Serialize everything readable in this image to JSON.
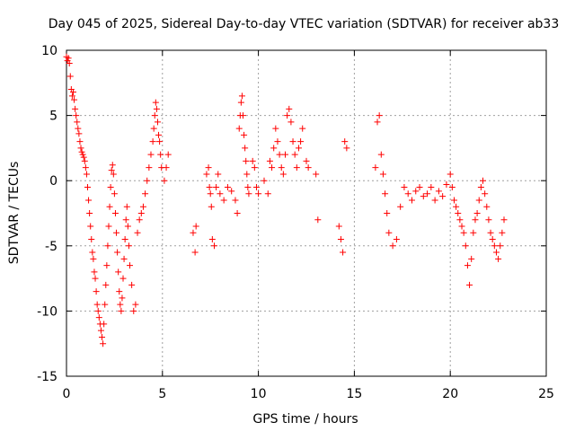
{
  "chart_data": {
    "type": "scatter",
    "title": "Day 045 of 2025, Sidereal Day-to-day VTEC variation (SDTVAR) for receiver ab33",
    "xlabel": "GPS time / hours",
    "ylabel": "SDTVAR / TECUs",
    "xlim": [
      0,
      25
    ],
    "ylim": [
      -15,
      10
    ],
    "xticks": [
      "0",
      "5",
      "10",
      "15",
      "20",
      "25"
    ],
    "yticks": [
      "10",
      "5",
      "0",
      "-5",
      "-10",
      "-15"
    ],
    "grid": true,
    "marker": "+",
    "color": "#ff0000",
    "series": [
      {
        "name": "SDTVAR",
        "x": [
          0.0,
          0.05,
          0.1,
          0.15,
          0.2,
          0.25,
          0.3,
          0.35,
          0.4,
          0.45,
          0.5,
          0.55,
          0.6,
          0.65,
          0.7,
          0.75,
          0.8,
          0.85,
          0.9,
          0.95,
          1.0,
          1.05,
          1.1,
          1.15,
          1.2,
          1.25,
          1.3,
          1.35,
          1.4,
          1.45,
          1.5,
          1.55,
          1.6,
          1.65,
          1.7,
          1.75,
          1.8,
          1.85,
          1.9,
          1.95,
          2.0,
          2.05,
          2.1,
          2.15,
          2.2,
          2.25,
          2.3,
          2.35,
          2.4,
          2.45,
          2.5,
          2.55,
          2.6,
          2.65,
          2.7,
          2.75,
          2.8,
          2.85,
          2.9,
          2.95,
          3.0,
          3.05,
          3.1,
          3.15,
          3.2,
          3.25,
          3.3,
          3.4,
          3.5,
          3.6,
          3.7,
          3.8,
          3.9,
          4.0,
          4.1,
          4.2,
          4.3,
          4.4,
          4.5,
          4.55,
          4.6,
          4.65,
          4.7,
          4.75,
          4.8,
          4.85,
          4.9,
          4.95,
          5.1,
          5.2,
          5.3,
          6.6,
          6.7,
          6.75,
          7.3,
          7.4,
          7.45,
          7.5,
          7.55,
          7.6,
          7.7,
          7.8,
          7.9,
          8.0,
          8.2,
          8.4,
          8.6,
          8.8,
          8.9,
          9.0,
          9.05,
          9.1,
          9.15,
          9.2,
          9.25,
          9.3,
          9.35,
          9.4,
          9.45,
          9.5,
          9.7,
          9.8,
          9.9,
          10.0,
          10.3,
          10.5,
          10.6,
          10.7,
          10.8,
          10.9,
          11.0,
          11.1,
          11.2,
          11.3,
          11.4,
          11.5,
          11.6,
          11.7,
          11.8,
          11.9,
          12.0,
          12.1,
          12.2,
          12.3,
          12.5,
          12.6,
          13.0,
          13.1,
          14.2,
          14.3,
          14.4,
          14.5,
          14.6,
          16.1,
          16.2,
          16.3,
          16.4,
          16.5,
          16.6,
          16.7,
          16.8,
          17.0,
          17.2,
          17.4,
          17.6,
          17.8,
          18.0,
          18.2,
          18.4,
          18.6,
          18.8,
          19.0,
          19.2,
          19.4,
          19.6,
          19.8,
          20.0,
          20.1,
          20.2,
          20.3,
          20.4,
          20.5,
          20.6,
          20.7,
          20.8,
          20.9,
          21.0,
          21.1,
          21.2,
          21.3,
          21.4,
          21.5,
          21.6,
          21.7,
          21.8,
          21.9,
          22.0,
          22.1,
          22.2,
          22.3,
          22.4,
          22.5,
          22.6,
          22.7,
          22.8
        ],
        "y": [
          9.5,
          9.2,
          9.4,
          9.0,
          8.0,
          7.0,
          6.5,
          6.8,
          6.2,
          5.5,
          5.0,
          4.5,
          4.0,
          3.6,
          3.0,
          2.5,
          2.2,
          2.0,
          1.8,
          1.5,
          1.0,
          0.5,
          -0.5,
          -1.5,
          -2.5,
          -3.5,
          -4.5,
          -5.5,
          -6.0,
          -7.0,
          -7.5,
          -8.5,
          -9.5,
          -10.0,
          -10.5,
          -11.0,
          -11.5,
          -12.0,
          -12.5,
          -11.0,
          -9.5,
          -8.0,
          -6.5,
          -5.0,
          -3.5,
          -2.0,
          -0.5,
          0.8,
          1.2,
          0.5,
          -1.0,
          -2.5,
          -4.0,
          -5.5,
          -7.0,
          -8.5,
          -9.5,
          -10.0,
          -9.0,
          -7.5,
          -6.0,
          -4.5,
          -3.0,
          -2.0,
          -3.5,
          -5.0,
          -6.5,
          -8.0,
          -10.0,
          -9.5,
          -4.0,
          -3.0,
          -2.5,
          -2.0,
          -1.0,
          0.0,
          1.0,
          2.0,
          3.0,
          4.0,
          5.0,
          6.0,
          5.5,
          4.5,
          3.5,
          3.0,
          2.0,
          1.0,
          0.0,
          1.0,
          2.0,
          -4.0,
          -5.5,
          -3.5,
          0.5,
          1.0,
          -0.5,
          -1.0,
          -2.0,
          -4.5,
          -5.0,
          -0.5,
          0.5,
          -1.0,
          -1.5,
          -0.5,
          -0.8,
          -1.5,
          -2.5,
          4.0,
          5.0,
          6.0,
          6.5,
          5.0,
          3.5,
          2.5,
          1.5,
          0.5,
          -0.5,
          -1.0,
          1.5,
          1.0,
          -0.5,
          -1.0,
          0.0,
          -1.0,
          1.5,
          1.0,
          2.5,
          4.0,
          3.0,
          2.0,
          1.0,
          0.5,
          2.0,
          5.0,
          5.5,
          4.5,
          3.0,
          2.0,
          1.0,
          2.5,
          3.0,
          4.0,
          1.5,
          1.0,
          0.5,
          -3.0,
          -3.5,
          -4.5,
          -5.5,
          3.0,
          2.5,
          1.0,
          4.5,
          5.0,
          2.0,
          0.5,
          -1.0,
          -2.5,
          -4.0,
          -5.0,
          -4.5,
          -2.0,
          -0.5,
          -1.0,
          -1.5,
          -0.8,
          -0.5,
          -1.2,
          -1.0,
          -0.5,
          -1.5,
          -0.8,
          -1.2,
          -0.3,
          0.5,
          -0.5,
          -1.5,
          -2.0,
          -2.5,
          -3.0,
          -3.5,
          -4.0,
          -5.0,
          -6.5,
          -8.0,
          -6.0,
          -4.0,
          -3.0,
          -2.5,
          -1.5,
          -0.5,
          0.0,
          -1.0,
          -2.0,
          -3.0,
          -4.0,
          -4.5,
          -5.0,
          -5.5,
          -6.0,
          -5.0,
          -4.0,
          -3.0
        ]
      }
    ]
  }
}
